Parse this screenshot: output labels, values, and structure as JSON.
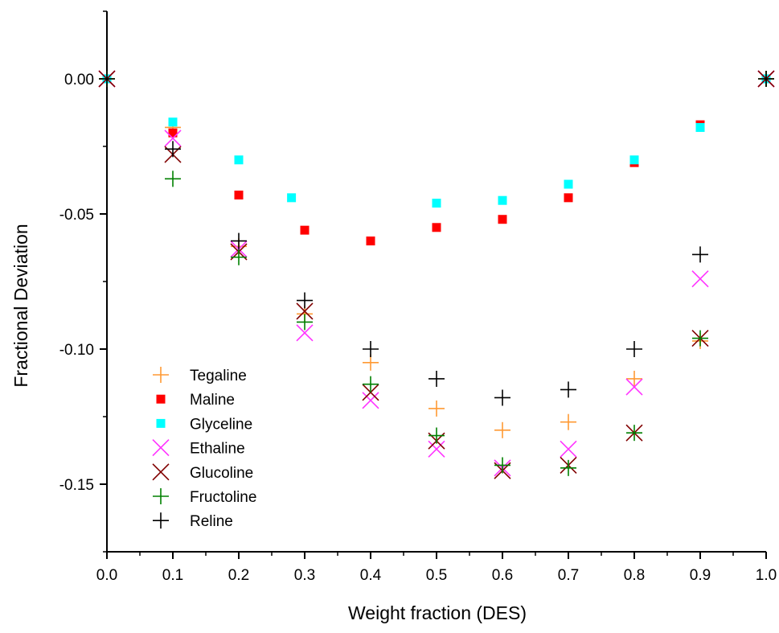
{
  "chart_data": {
    "type": "scatter",
    "xlabel": "Weight fraction (DES)",
    "ylabel": "Fractional Deviation",
    "xlim": [
      0.0,
      1.0
    ],
    "ylim": [
      -0.175,
      0.025
    ],
    "x_ticks": [
      "0.0",
      "0.1",
      "0.2",
      "0.3",
      "0.4",
      "0.5",
      "0.6",
      "0.7",
      "0.8",
      "0.9",
      "1.0"
    ],
    "x_tick_values": [
      0.0,
      0.1,
      0.2,
      0.3,
      0.4,
      0.5,
      0.6,
      0.7,
      0.8,
      0.9,
      1.0
    ],
    "y_ticks": [
      "0.00",
      "-0.05",
      "-0.10",
      "-0.15"
    ],
    "y_tick_values": [
      0.0,
      -0.05,
      -0.1,
      -0.15
    ],
    "grid": false,
    "legend_position": "bottom-left",
    "series": [
      {
        "name": "Tegaline",
        "marker": "plus",
        "color": "#ff9933",
        "points": [
          [
            0.0,
            0.0
          ],
          [
            0.1,
            -0.018
          ],
          [
            0.2,
            -0.062
          ],
          [
            0.3,
            -0.087
          ],
          [
            0.4,
            -0.105
          ],
          [
            0.5,
            -0.122
          ],
          [
            0.6,
            -0.13
          ],
          [
            0.7,
            -0.127
          ],
          [
            0.8,
            -0.111
          ],
          [
            0.9,
            -0.097
          ],
          [
            1.0,
            0.0
          ]
        ]
      },
      {
        "name": "Maline",
        "marker": "square",
        "color": "#ff0000",
        "points": [
          [
            0.0,
            0.0
          ],
          [
            0.1,
            -0.02
          ],
          [
            0.2,
            -0.043
          ],
          [
            0.3,
            -0.056
          ],
          [
            0.4,
            -0.06
          ],
          [
            0.5,
            -0.055
          ],
          [
            0.6,
            -0.052
          ],
          [
            0.7,
            -0.044
          ],
          [
            0.8,
            -0.031
          ],
          [
            0.9,
            -0.017
          ],
          [
            1.0,
            0.0
          ]
        ]
      },
      {
        "name": "Glyceline",
        "marker": "square",
        "color": "#00ffff",
        "points": [
          [
            0.0,
            0.0
          ],
          [
            0.1,
            -0.016
          ],
          [
            0.2,
            -0.03
          ],
          [
            0.28,
            -0.044
          ],
          [
            0.5,
            -0.046
          ],
          [
            0.6,
            -0.045
          ],
          [
            0.7,
            -0.039
          ],
          [
            0.8,
            -0.03
          ],
          [
            0.9,
            -0.018
          ],
          [
            1.0,
            0.0
          ]
        ]
      },
      {
        "name": "Ethaline",
        "marker": "cross",
        "color": "#ff33ff",
        "points": [
          [
            0.0,
            0.0
          ],
          [
            0.1,
            -0.022
          ],
          [
            0.2,
            -0.063
          ],
          [
            0.3,
            -0.094
          ],
          [
            0.4,
            -0.119
          ],
          [
            0.5,
            -0.137
          ],
          [
            0.6,
            -0.144
          ],
          [
            0.7,
            -0.137
          ],
          [
            0.8,
            -0.114
          ],
          [
            0.9,
            -0.074
          ],
          [
            1.0,
            0.0
          ]
        ]
      },
      {
        "name": "Glucoline",
        "marker": "cross",
        "color": "#800000",
        "points": [
          [
            0.0,
            0.0
          ],
          [
            0.1,
            -0.028
          ],
          [
            0.2,
            -0.064
          ],
          [
            0.3,
            -0.086
          ],
          [
            0.4,
            -0.116
          ],
          [
            0.5,
            -0.134
          ],
          [
            0.6,
            -0.145
          ],
          [
            0.7,
            -0.143
          ],
          [
            0.8,
            -0.131
          ],
          [
            0.9,
            -0.096
          ],
          [
            1.0,
            0.0
          ]
        ]
      },
      {
        "name": "Fructoline",
        "marker": "plus",
        "color": "#008000",
        "points": [
          [
            0.0,
            0.0
          ],
          [
            0.1,
            -0.037
          ],
          [
            0.2,
            -0.066
          ],
          [
            0.3,
            -0.09
          ],
          [
            0.4,
            -0.113
          ],
          [
            0.5,
            -0.132
          ],
          [
            0.6,
            -0.143
          ],
          [
            0.7,
            -0.144
          ],
          [
            0.8,
            -0.131
          ],
          [
            0.9,
            -0.096
          ],
          [
            1.0,
            0.0
          ]
        ]
      },
      {
        "name": "Reline",
        "marker": "plus",
        "color": "#000000",
        "points": [
          [
            0.0,
            0.0
          ],
          [
            0.1,
            -0.026
          ],
          [
            0.2,
            -0.06
          ],
          [
            0.3,
            -0.082
          ],
          [
            0.4,
            -0.1
          ],
          [
            0.5,
            -0.111
          ],
          [
            0.6,
            -0.118
          ],
          [
            0.7,
            -0.115
          ],
          [
            0.8,
            -0.1
          ],
          [
            0.9,
            -0.065
          ],
          [
            1.0,
            0.0
          ]
        ]
      }
    ]
  }
}
